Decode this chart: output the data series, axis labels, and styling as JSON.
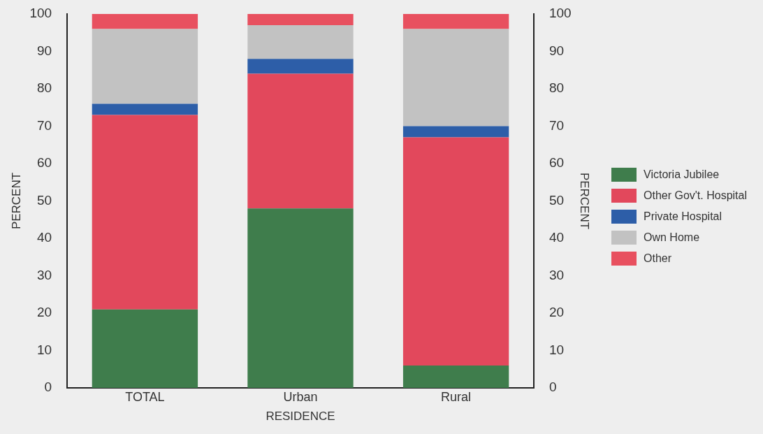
{
  "chart_data": {
    "type": "bar",
    "stacked": true,
    "xlabel": "RESIDENCE",
    "ylabel": "PERCENT",
    "y2label": "PERCENT",
    "categories": [
      "TOTAL",
      "Urban",
      "Rural"
    ],
    "series": [
      {
        "name": "Victoria Jubilee",
        "color": "#3f7d4c",
        "values": [
          21,
          48,
          6
        ]
      },
      {
        "name": "Other Gov't. Hospital",
        "color": "#e2485c",
        "values": [
          52,
          36,
          61
        ]
      },
      {
        "name": "Private Hospital",
        "color": "#2d5ea8",
        "values": [
          3,
          4,
          3
        ]
      },
      {
        "name": "Own Home",
        "color": "#c2c2c2",
        "values": [
          20,
          9,
          26
        ]
      },
      {
        "name": "Other",
        "color": "#e8505f",
        "values": [
          4,
          3,
          4
        ]
      }
    ],
    "ylim": [
      0,
      100
    ],
    "yticks": [
      0,
      10,
      20,
      30,
      40,
      50,
      60,
      70,
      80,
      90,
      100
    ],
    "y2lim": [
      0,
      100
    ],
    "y2ticks": [
      0,
      10,
      20,
      30,
      40,
      50,
      60,
      70,
      80,
      90,
      100
    ],
    "grid": false,
    "legend": "right"
  }
}
